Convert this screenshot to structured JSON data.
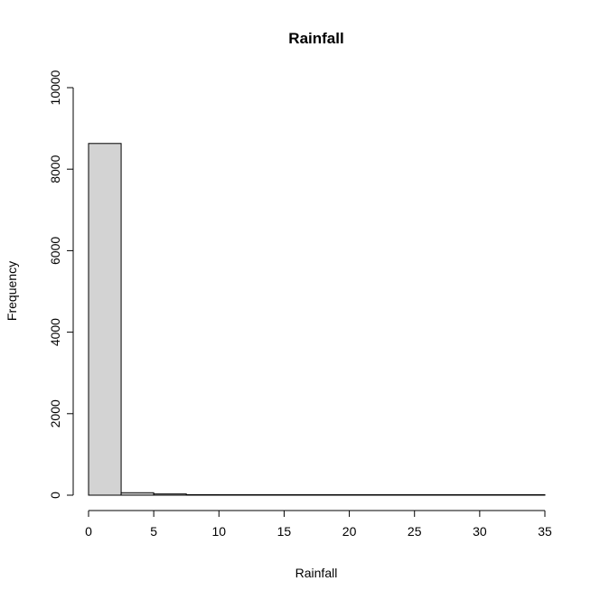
{
  "chart_data": {
    "type": "bar",
    "title": "Rainfall",
    "xlabel": "Rainfall",
    "ylabel": "Frequency",
    "xlim": [
      0,
      35
    ],
    "ylim": [
      0,
      10000
    ],
    "grid": false,
    "bins": [
      {
        "x0": 0,
        "x1": 2.5,
        "count": 8630
      },
      {
        "x0": 2.5,
        "x1": 5,
        "count": 60
      },
      {
        "x0": 5,
        "x1": 7.5,
        "count": 30
      },
      {
        "x0": 7.5,
        "x1": 10,
        "count": 12
      },
      {
        "x0": 10,
        "x1": 12.5,
        "count": 8
      },
      {
        "x0": 12.5,
        "x1": 15,
        "count": 6
      },
      {
        "x0": 15,
        "x1": 17.5,
        "count": 5
      },
      {
        "x0": 17.5,
        "x1": 20,
        "count": 5
      },
      {
        "x0": 20,
        "x1": 22.5,
        "count": 4
      },
      {
        "x0": 22.5,
        "x1": 25,
        "count": 3
      },
      {
        "x0": 25,
        "x1": 27.5,
        "count": 2
      },
      {
        "x0": 27.5,
        "x1": 30,
        "count": 3
      },
      {
        "x0": 30,
        "x1": 32.5,
        "count": 1
      },
      {
        "x0": 32.5,
        "x1": 35,
        "count": 3
      }
    ],
    "x_ticks": [
      0,
      5,
      10,
      15,
      20,
      25,
      30,
      35
    ],
    "y_ticks": [
      0,
      2000,
      4000,
      6000,
      8000,
      10000
    ],
    "bar_fill": "#d3d3d3",
    "bar_stroke": "#000000"
  }
}
